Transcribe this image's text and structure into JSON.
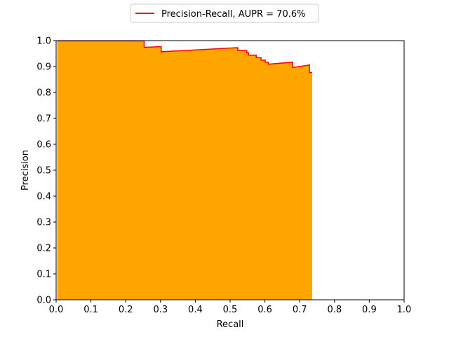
{
  "chart_data": {
    "type": "area",
    "title": "",
    "xlabel": "Recall",
    "ylabel": "Precision",
    "xlim": [
      0.0,
      1.0
    ],
    "ylim": [
      0.0,
      1.0
    ],
    "x_ticks": [
      0.0,
      0.1,
      0.2,
      0.3,
      0.4,
      0.5,
      0.6,
      0.7,
      0.8,
      0.9,
      1.0
    ],
    "x_tick_labels": [
      "0.0",
      "0.1",
      "0.2",
      "0.3",
      "0.4",
      "0.5",
      "0.6",
      "0.7",
      "0.8",
      "0.9",
      "1.0"
    ],
    "y_ticks": [
      0.0,
      0.1,
      0.2,
      0.3,
      0.4,
      0.5,
      0.6,
      0.7,
      0.8,
      0.9,
      1.0
    ],
    "y_tick_labels": [
      "0.0",
      "0.1",
      "0.2",
      "0.3",
      "0.4",
      "0.5",
      "0.6",
      "0.7",
      "0.8",
      "0.9",
      "1.0"
    ],
    "grid": false,
    "legend": {
      "placement": "top-center",
      "entries": [
        "Precision-Recall, AUPR = 70.6%"
      ]
    },
    "fill_color": "#ffa500",
    "line_color": "#ff0000",
    "series": [
      {
        "name": "Precision-Recall, AUPR = 70.6%",
        "x": [
          0.003,
          0.253,
          0.253,
          0.302,
          0.302,
          0.522,
          0.522,
          0.548,
          0.548,
          0.553,
          0.553,
          0.558,
          0.558,
          0.575,
          0.575,
          0.589,
          0.589,
          0.601,
          0.601,
          0.61,
          0.61,
          0.68,
          0.68,
          0.728,
          0.728,
          0.736
        ],
        "y": [
          0.999,
          0.999,
          0.974,
          0.977,
          0.957,
          0.973,
          0.962,
          0.962,
          0.953,
          0.953,
          0.944,
          0.944,
          0.944,
          0.944,
          0.934,
          0.934,
          0.925,
          0.925,
          0.917,
          0.917,
          0.909,
          0.917,
          0.896,
          0.906,
          0.877,
          0.877
        ]
      }
    ]
  }
}
